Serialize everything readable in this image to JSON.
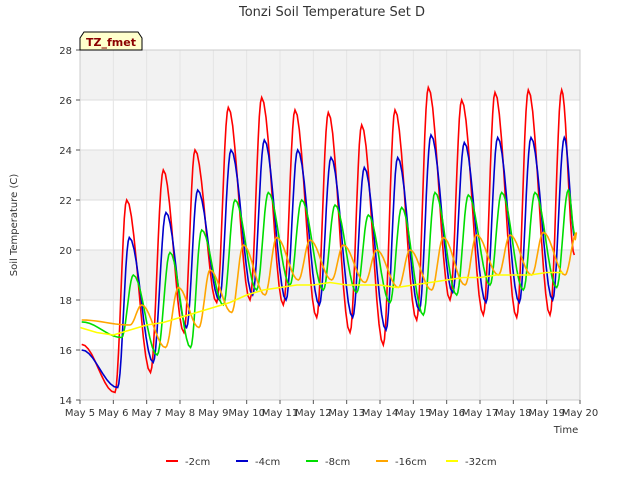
{
  "chart_data": {
    "type": "line",
    "title": "Tonzi Soil Temperature Set D",
    "xlabel": "Time",
    "ylabel": "Soil Temperature (C)",
    "tag": "TZ_fmet",
    "xlim": [
      5,
      20
    ],
    "ylim": [
      14,
      28
    ],
    "x_ticks": [
      5,
      6,
      7,
      8,
      9,
      10,
      11,
      12,
      13,
      14,
      15,
      16,
      17,
      18,
      19,
      20
    ],
    "x_tick_labels": [
      "May 5",
      "May 6",
      "May 7",
      "May 8",
      "May 9",
      "May 10",
      "May 11",
      "May 12",
      "May 13",
      "May 14",
      "May 15",
      "May 16",
      "May 17",
      "May 18",
      "May 19",
      "May 20"
    ],
    "y_ticks": [
      14,
      16,
      18,
      20,
      22,
      24,
      26,
      28
    ],
    "y_tick_labels": [
      "14",
      "16",
      "18",
      "20",
      "22",
      "24",
      "26",
      "28"
    ],
    "grid": true,
    "legend": "bottom",
    "x_day_start": 5,
    "x_day_end": 19,
    "series": [
      {
        "name": "-2cm",
        "color": "#ff0000",
        "peak_x": [
          6.4,
          7.5,
          8.45,
          9.45,
          10.45,
          11.45,
          12.45,
          13.45,
          14.45,
          15.45,
          16.45,
          17.45,
          18.45,
          19.45
        ],
        "maxima": [
          22.0,
          23.2,
          24.0,
          25.7,
          26.1,
          25.6,
          25.5,
          25.0,
          25.6,
          26.5,
          26.0,
          26.3,
          26.4,
          26.4
        ],
        "minima": [
          14.3,
          15.1,
          16.7,
          17.9,
          18.0,
          17.8,
          17.3,
          16.7,
          16.2,
          17.2,
          18.0,
          17.4,
          17.3,
          17.4,
          19.8
        ]
      },
      {
        "name": "-4cm",
        "color": "#0000cc",
        "peak_x": [
          6.48,
          7.58,
          8.53,
          9.53,
          10.53,
          11.53,
          12.53,
          13.53,
          14.53,
          15.53,
          16.53,
          17.53,
          18.53,
          19.53
        ],
        "maxima": [
          20.5,
          21.5,
          22.4,
          24.0,
          24.4,
          24.0,
          23.7,
          23.3,
          23.7,
          24.6,
          24.3,
          24.5,
          24.5,
          24.5
        ],
        "minima": [
          14.5,
          15.5,
          16.9,
          18.0,
          18.2,
          18.0,
          17.8,
          17.3,
          16.8,
          17.6,
          18.3,
          17.9,
          17.9,
          18.0,
          20.5
        ]
      },
      {
        "name": "-8cm",
        "color": "#00dd00",
        "peak_x": [
          6.6,
          7.7,
          8.65,
          9.65,
          10.65,
          11.65,
          12.65,
          13.65,
          14.65,
          15.65,
          16.65,
          17.65,
          18.65,
          19.65
        ],
        "maxima": [
          19.0,
          19.9,
          20.8,
          22.0,
          22.3,
          22.0,
          21.8,
          21.4,
          21.7,
          22.3,
          22.2,
          22.3,
          22.3,
          22.4
        ],
        "minima": [
          16.5,
          15.8,
          16.1,
          17.8,
          18.4,
          18.6,
          18.4,
          18.3,
          17.9,
          17.4,
          18.2,
          18.6,
          18.4,
          18.5,
          20.6
        ]
      },
      {
        "name": "-16cm",
        "color": "#ffa500",
        "peak_x": [
          6.85,
          7.95,
          8.9,
          9.9,
          10.9,
          11.9,
          12.9,
          13.9,
          14.9,
          15.9,
          16.9,
          17.9,
          18.9,
          19.9
        ],
        "maxima": [
          17.8,
          18.5,
          19.2,
          20.2,
          20.5,
          20.4,
          20.2,
          20.0,
          20.0,
          20.5,
          20.6,
          20.6,
          20.7,
          20.7
        ],
        "minima": [
          17.0,
          16.1,
          16.9,
          17.5,
          18.2,
          18.8,
          18.8,
          18.7,
          18.5,
          18.4,
          18.6,
          19.0,
          19.0,
          19.0,
          20.4
        ]
      },
      {
        "name": "-32cm",
        "color": "#ffff00",
        "x": [
          5.0,
          5.5,
          6.0,
          6.5,
          7.0,
          7.5,
          8.0,
          8.5,
          9.0,
          9.5,
          10.0,
          10.5,
          11.0,
          11.5,
          12.0,
          12.5,
          13.0,
          13.5,
          14.0,
          14.5,
          15.0,
          15.5,
          16.0,
          16.5,
          17.0,
          17.5,
          18.0,
          18.5,
          19.0,
          19.5,
          20.0
        ],
        "values": [
          16.9,
          16.7,
          16.6,
          16.8,
          17.0,
          17.1,
          17.3,
          17.5,
          17.7,
          17.9,
          18.2,
          18.4,
          18.5,
          18.6,
          18.6,
          18.7,
          18.6,
          18.6,
          18.6,
          18.5,
          18.6,
          18.7,
          18.8,
          18.9,
          18.9,
          19.0,
          19.0,
          19.0,
          19.1,
          19.1,
          19.2
        ]
      }
    ]
  }
}
